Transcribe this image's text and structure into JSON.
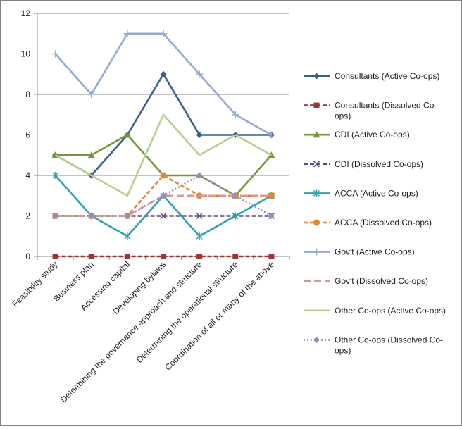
{
  "chart_data": {
    "type": "line",
    "title": "",
    "xlabel": "",
    "ylabel": "",
    "ylim": [
      0,
      12
    ],
    "yticks": [
      0,
      2,
      4,
      6,
      8,
      10,
      12
    ],
    "grid": "horizontal",
    "legend_position": "right",
    "categories": [
      "Feasibility study",
      "Business plan",
      "Accessing capital",
      "Developing bylaws",
      "Determining the governance approach and structure",
      "Determining the operational structure",
      "Coordination of all or many of the above"
    ],
    "series": [
      {
        "name": "Consultants (Active Co-ops)",
        "legend_lines": [
          "Consultants (Active Co-ops)"
        ],
        "color": "#3a5f8f",
        "marker": "diamond",
        "dash": "solid",
        "values": [
          5,
          4,
          6,
          9,
          6,
          6,
          6
        ]
      },
      {
        "name": "Consultants (Dissolved Co-ops)",
        "legend_lines": [
          "Consultants (Dissolved Co-",
          "ops)"
        ],
        "color": "#9e3532",
        "marker": "square",
        "dash": "dashed",
        "values": [
          0,
          0,
          0,
          0,
          0,
          0,
          0
        ]
      },
      {
        "name": "CDI (Active Co-ops)",
        "legend_lines": [
          "CDI (Active Co-ops)"
        ],
        "color": "#77963b",
        "marker": "triangle",
        "dash": "solid",
        "values": [
          5,
          5,
          6,
          4,
          4,
          3,
          5
        ]
      },
      {
        "name": "CDI (Dissolved Co-ops)",
        "legend_lines": [
          "CDI (Dissolved Co-ops)"
        ],
        "color": "#5e4a7e",
        "marker": "x",
        "dash": "dashed",
        "values": [
          2,
          2,
          2,
          2,
          2,
          2,
          2
        ]
      },
      {
        "name": "ACCA (Active Co-ops)",
        "legend_lines": [
          "ACCA (Active Co-ops)"
        ],
        "color": "#31a0b2",
        "marker": "star",
        "dash": "solid",
        "values": [
          4,
          2,
          1,
          3,
          1,
          2,
          3
        ]
      },
      {
        "name": "ACCA (Dissolved Co-ops)",
        "legend_lines": [
          "ACCA (Dissolved Co-ops)"
        ],
        "color": "#e0873a",
        "marker": "circle",
        "dash": "dashed",
        "values": [
          2,
          2,
          2,
          4,
          3,
          3,
          3
        ]
      },
      {
        "name": "Gov't (Active Co-ops)",
        "legend_lines": [
          "Gov't (Active Co-ops)"
        ],
        "color": "#94aad3",
        "marker": "plus",
        "dash": "solid",
        "values": [
          10,
          8,
          11,
          11,
          9,
          7,
          6
        ]
      },
      {
        "name": "Gov't (Dissolved Co-ops)",
        "legend_lines": [
          "Gov't (Dissolved Co-ops)"
        ],
        "color": "#d69a9a",
        "marker": "none",
        "dash": "longdash",
        "values": [
          2,
          2,
          2,
          3,
          3,
          3,
          3
        ]
      },
      {
        "name": "Other Co-ops (Active Co-ops)",
        "legend_lines": [
          "Other Co-ops (Active Co-ops)"
        ],
        "color": "#b7cf8f",
        "marker": "none",
        "dash": "solid",
        "values": [
          5,
          4,
          3,
          7,
          5,
          6,
          5
        ]
      },
      {
        "name": "Other Co-ops (Dissolved Co-ops)",
        "legend_lines": [
          "Other Co-ops (Dissolved Co-",
          "ops)"
        ],
        "color": "#9b8bbd",
        "marker": "diamond",
        "dash": "dotted",
        "values": [
          2,
          2,
          2,
          3,
          4,
          3,
          2
        ]
      }
    ]
  }
}
